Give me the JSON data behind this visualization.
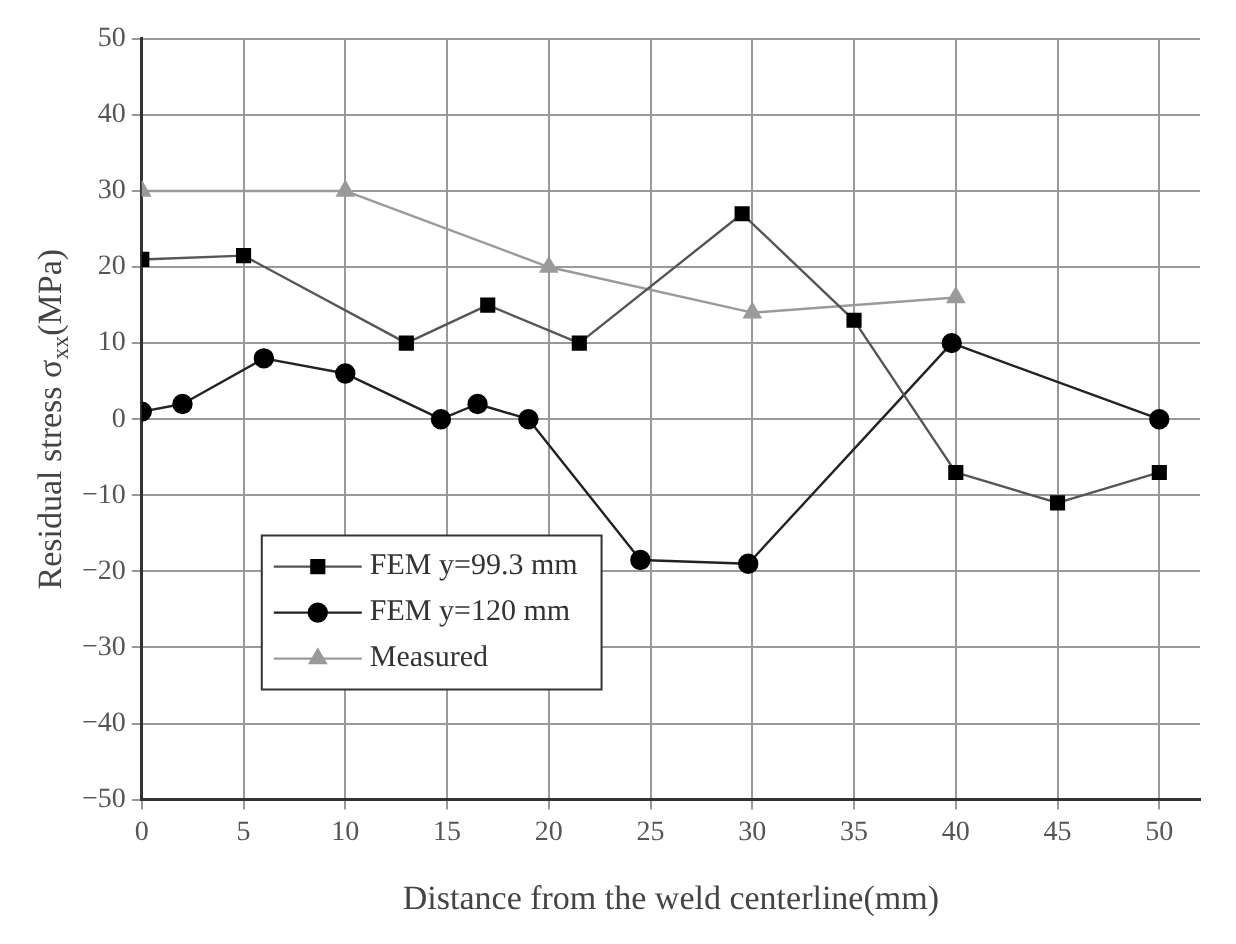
{
  "chart_data": {
    "type": "line",
    "xlabel": "Distance from the weld centerline(mm)",
    "ylabel": "Residual stress σ$_{xx}$(MPa)",
    "xlim": [
      0,
      52
    ],
    "xticks": [
      0,
      5,
      10,
      15,
      20,
      25,
      30,
      35,
      40,
      45,
      50
    ],
    "ylim": [
      -50,
      50
    ],
    "yticks": [
      -50,
      -40,
      -30,
      -20,
      -10,
      0,
      10,
      20,
      30,
      40,
      50
    ],
    "grid": true,
    "legend": "bottom left",
    "line_style": "solid",
    "series": [
      {
        "name": "FEM y=99.3 mm",
        "color": "#555555",
        "marker": "square",
        "x": [
          0,
          5,
          13,
          17,
          21.5,
          29.5,
          35,
          40,
          45,
          50
        ],
        "values": [
          21,
          21.5,
          10,
          15,
          10,
          27,
          13,
          -7,
          -11,
          -7
        ]
      },
      {
        "name": "FEM y=120 mm",
        "color": "#222222",
        "marker": "circle",
        "x": [
          0,
          2,
          6,
          10,
          14.7,
          16.5,
          19,
          24.5,
          29.8,
          39.8,
          50
        ],
        "values": [
          1,
          2,
          8,
          6,
          0,
          2,
          0,
          -18.5,
          -19,
          10,
          0
        ]
      },
      {
        "name": "Measured",
        "color": "#9a9a9a",
        "marker": "triangle",
        "x": [
          0,
          10,
          20,
          30,
          40
        ],
        "values": [
          30,
          30,
          20,
          14,
          16
        ]
      }
    ]
  }
}
